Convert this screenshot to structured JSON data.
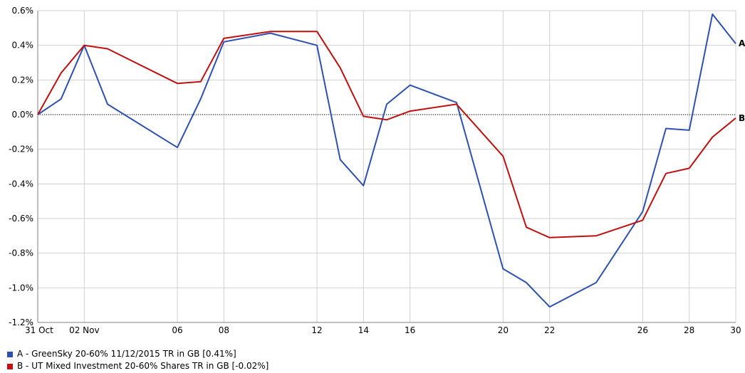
{
  "chart_data": {
    "type": "line",
    "x": [
      "31 Oct",
      "01 Nov",
      "02 Nov",
      "03 Nov",
      "04 Nov",
      "05 Nov",
      "06",
      "07",
      "08",
      "09",
      "10",
      "11",
      "12",
      "13",
      "14",
      "15",
      "16",
      "17",
      "18",
      "19",
      "20",
      "21",
      "22",
      "23",
      "24",
      "25",
      "26",
      "27",
      "28",
      "29",
      "30"
    ],
    "x_tick_labels": [
      "31 Oct",
      "02 Nov",
      "06",
      "08",
      "12",
      "14",
      "16",
      "20",
      "22",
      "26",
      "28",
      "30"
    ],
    "y_ticks": [
      "0.6%",
      "0.4%",
      "0.2%",
      "0.0%",
      "-0.2%",
      "-0.4%",
      "-0.6%",
      "-0.8%",
      "-1.0%",
      "-1.2%"
    ],
    "ylim": [
      -1.2,
      0.6
    ],
    "grid": true,
    "zero_line": "dotted",
    "legend_position": "bottom-left",
    "series": [
      {
        "name": "A - GreenSky 20-60% 11/12/2015 TR in GB [0.41%]",
        "end_label": "A",
        "color": "#2E50B0",
        "points": [
          [
            "31 Oct",
            0.0
          ],
          [
            "01 Nov",
            0.09
          ],
          [
            "02 Nov",
            0.4
          ],
          [
            "03 Nov",
            0.06
          ],
          [
            "06",
            -0.19
          ],
          [
            "07",
            0.09
          ],
          [
            "08",
            0.42
          ],
          [
            "10",
            0.47
          ],
          [
            "12",
            0.4
          ],
          [
            "13",
            -0.26
          ],
          [
            "14",
            -0.41
          ],
          [
            "15",
            0.06
          ],
          [
            "16",
            0.17
          ],
          [
            "18",
            0.07
          ],
          [
            "20",
            -0.89
          ],
          [
            "21",
            -0.97
          ],
          [
            "22",
            -1.11
          ],
          [
            "24",
            -0.97
          ],
          [
            "26",
            -0.56
          ],
          [
            "27",
            -0.08
          ],
          [
            "28",
            -0.09
          ],
          [
            "29",
            0.58
          ],
          [
            "30",
            0.41
          ]
        ]
      },
      {
        "name": "B - UT Mixed Investment 20-60% Shares TR in GB [-0.02%]",
        "end_label": "B",
        "color": "#C01010",
        "points": [
          [
            "31 Oct",
            0.0
          ],
          [
            "01 Nov",
            0.24
          ],
          [
            "02 Nov",
            0.4
          ],
          [
            "03 Nov",
            0.38
          ],
          [
            "06",
            0.18
          ],
          [
            "07",
            0.19
          ],
          [
            "08",
            0.44
          ],
          [
            "10",
            0.48
          ],
          [
            "12",
            0.48
          ],
          [
            "13",
            0.27
          ],
          [
            "14",
            -0.01
          ],
          [
            "15",
            -0.03
          ],
          [
            "16",
            0.02
          ],
          [
            "18",
            0.06
          ],
          [
            "20",
            -0.24
          ],
          [
            "21",
            -0.65
          ],
          [
            "22",
            -0.71
          ],
          [
            "24",
            -0.7
          ],
          [
            "26",
            -0.61
          ],
          [
            "27",
            -0.34
          ],
          [
            "28",
            -0.31
          ],
          [
            "29",
            -0.13
          ],
          [
            "30",
            -0.02
          ]
        ]
      }
    ]
  }
}
